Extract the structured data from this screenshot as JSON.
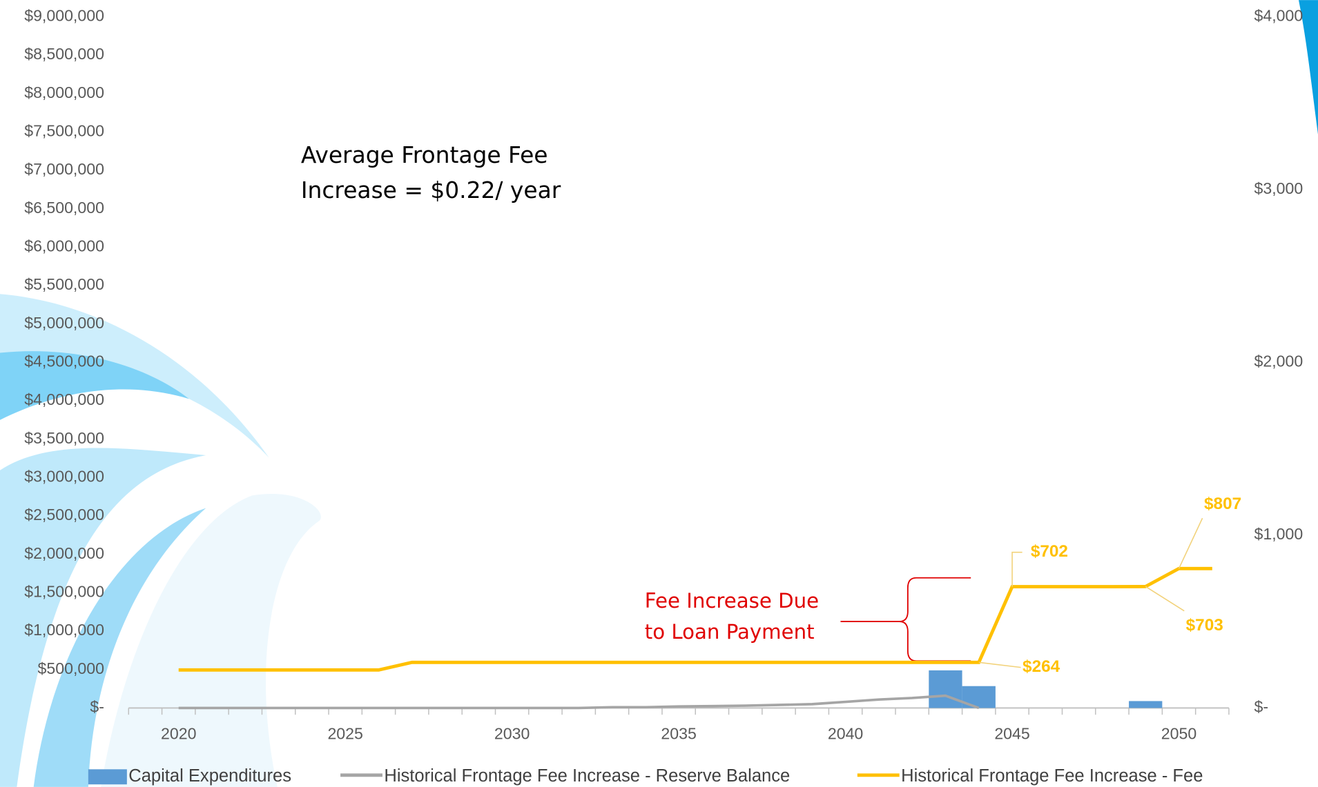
{
  "chart_data": {
    "type": "combo",
    "categories": [
      null,
      "2020",
      null,
      null,
      null,
      null,
      "2025",
      null,
      null,
      null,
      null,
      "2030",
      null,
      null,
      null,
      null,
      "2035",
      null,
      null,
      null,
      null,
      "2040",
      null,
      null,
      null,
      null,
      "2045",
      null,
      null,
      null,
      null,
      "2050",
      null
    ],
    "series": [
      {
        "name": "Capital Expenditures",
        "type": "bar",
        "color": "#5b9bd5",
        "axis": "y",
        "values": [
          0,
          0,
          0,
          0,
          0,
          0,
          0,
          0,
          0,
          0,
          0,
          0,
          0,
          0,
          0,
          0,
          0,
          0,
          0,
          0,
          0,
          0,
          0,
          0,
          490000,
          285000,
          0,
          0,
          0,
          0,
          90000,
          0,
          0
        ]
      },
      {
        "name": "Historical Frontage Fee Increase - Reserve Balance",
        "type": "line",
        "color": "#a5a5a5",
        "axis": "y",
        "values": [
          null,
          0,
          0,
          0,
          0,
          0,
          0,
          0,
          0,
          0,
          0,
          0,
          0,
          0,
          10000,
          10000,
          20000,
          25000,
          30000,
          40000,
          50000,
          80000,
          110000,
          130000,
          160000,
          0,
          null,
          null,
          null,
          null,
          null,
          null,
          null
        ]
      },
      {
        "name": "Historical Frontage Fee Increase - Fee",
        "type": "line",
        "color": "#ffc000",
        "axis": "y2",
        "values": [
          null,
          220,
          220,
          220,
          220,
          220,
          220,
          220,
          264,
          264,
          264,
          264,
          264,
          264,
          264,
          264,
          264,
          264,
          264,
          264,
          264,
          264,
          264,
          264,
          264,
          264,
          702,
          702,
          702,
          702,
          703,
          807,
          807
        ],
        "value_labels": [
          null,
          null,
          null,
          null,
          null,
          null,
          null,
          null,
          null,
          null,
          null,
          null,
          null,
          null,
          null,
          null,
          null,
          null,
          null,
          null,
          null,
          null,
          null,
          null,
          null,
          "$264",
          "$702",
          null,
          null,
          null,
          "$703",
          "$807",
          null
        ]
      }
    ],
    "ylim": [
      0,
      9000000
    ],
    "yticks": [
      {
        "value": 0,
        "label": "$-"
      },
      {
        "value": 500000,
        "label": "$500,000"
      },
      {
        "value": 1000000,
        "label": "$1,000,000"
      },
      {
        "value": 1500000,
        "label": "$1,500,000"
      },
      {
        "value": 2000000,
        "label": "$2,000,000"
      },
      {
        "value": 2500000,
        "label": "$2,500,000"
      },
      {
        "value": 3000000,
        "label": "$3,000,000"
      },
      {
        "value": 3500000,
        "label": "$3,500,000"
      },
      {
        "value": 4000000,
        "label": "$4,000,000"
      },
      {
        "value": 4500000,
        "label": "$4,500,000"
      },
      {
        "value": 5000000,
        "label": "$5,000,000"
      },
      {
        "value": 5500000,
        "label": "$5,500,000"
      },
      {
        "value": 6000000,
        "label": "$6,000,000"
      },
      {
        "value": 6500000,
        "label": "$6,500,000"
      },
      {
        "value": 7000000,
        "label": "$7,000,000"
      },
      {
        "value": 7500000,
        "label": "$7,500,000"
      },
      {
        "value": 8000000,
        "label": "$8,000,000"
      },
      {
        "value": 8500000,
        "label": "$8,500,000"
      },
      {
        "value": 9000000,
        "label": "$9,000,000"
      }
    ],
    "y2lim": [
      0,
      4000
    ],
    "y2ticks": [
      {
        "value": 0,
        "label": "$-"
      },
      {
        "value": 1000,
        "label": "$1,000"
      },
      {
        "value": 2000,
        "label": "$2,000"
      },
      {
        "value": 3000,
        "label": "$3,000"
      },
      {
        "value": 4000,
        "label": "$4,000"
      }
    ],
    "annotations": [
      {
        "lines": [
          "Average Frontage Fee",
          "Increase = $0.22/ year"
        ]
      },
      {
        "lines": [
          "Fee Increase Due",
          "to Loan Payment"
        ]
      }
    ],
    "legend": "bottom",
    "grid": false
  }
}
